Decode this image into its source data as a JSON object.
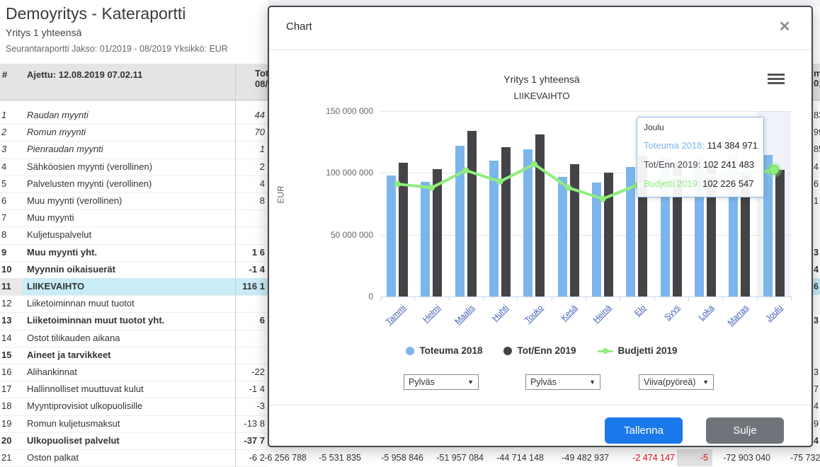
{
  "page_header": {
    "title": "Demoyritys - Kateraportti",
    "subtitle": "Yritys 1 yhteensä",
    "meta": "Seurantaraportti Jakso: 01/2019 - 08/2019 Yksikkö: EUR"
  },
  "table": {
    "hash": "#",
    "run_label": "Ajettu: 12.08.2019 07.02.11",
    "clipped_header_line1": "Tote",
    "clipped_header_line2": "08/",
    "rows": [
      {
        "num": "1",
        "label": "Raudan myynti",
        "value": "44",
        "em": true,
        "bold": false,
        "hl": false
      },
      {
        "num": "2",
        "label": "Romun myynti",
        "value": "70",
        "em": true,
        "bold": false,
        "hl": false
      },
      {
        "num": "3",
        "label": "Pienraudan myynti",
        "value": "1",
        "em": true,
        "bold": false,
        "hl": false
      },
      {
        "num": "4",
        "label": "Sähköosien myynti (verollinen)",
        "value": "2",
        "em": false,
        "bold": false,
        "hl": false
      },
      {
        "num": "5",
        "label": "Palvelusten myynti (verollinen)",
        "value": "4",
        "em": false,
        "bold": false,
        "hl": false
      },
      {
        "num": "6",
        "label": "Muu myynti (verollinen)",
        "value": "8",
        "em": false,
        "bold": false,
        "hl": false
      },
      {
        "num": "7",
        "label": "Muu myynti",
        "value": "",
        "em": false,
        "bold": false,
        "hl": false
      },
      {
        "num": "8",
        "label": "Kuljetuspalvelut",
        "value": "",
        "em": false,
        "bold": false,
        "hl": false
      },
      {
        "num": "9",
        "label": "Muu myynti yht.",
        "value": "1 6",
        "em": false,
        "bold": true,
        "hl": false
      },
      {
        "num": "10",
        "label": "Myynnin oikaisuerät",
        "value": "-1 4",
        "em": false,
        "bold": true,
        "hl": false
      },
      {
        "num": "11",
        "label": "LIIKEVAIHTO",
        "value": "116 1",
        "em": false,
        "bold": true,
        "hl": true
      },
      {
        "num": "12",
        "label": "Liiketoiminnan muut tuotot",
        "value": "",
        "em": false,
        "bold": false,
        "hl": false
      },
      {
        "num": "13",
        "label": "Liiketoiminnan muut tuotot yht.",
        "value": "6",
        "em": false,
        "bold": true,
        "hl": false
      },
      {
        "num": "14",
        "label": "Ostot tilikauden aikana",
        "value": "",
        "em": false,
        "bold": false,
        "hl": false
      },
      {
        "num": "15",
        "label": "Aineet ja tarvikkeet",
        "value": "",
        "em": false,
        "bold": true,
        "hl": false
      },
      {
        "num": "16",
        "label": "Alihankinnat",
        "value": "-22",
        "em": false,
        "bold": false,
        "hl": false
      },
      {
        "num": "17",
        "label": "Hallinnolliset muuttuvat kulut",
        "value": "-1 4",
        "em": false,
        "bold": false,
        "hl": false
      },
      {
        "num": "18",
        "label": "Myyntiprovisiot ulkopuolisille",
        "value": "-3",
        "em": false,
        "bold": false,
        "hl": false
      },
      {
        "num": "19",
        "label": "Romun kuljetusmaksut",
        "value": "-13 8",
        "em": false,
        "bold": false,
        "hl": false
      },
      {
        "num": "20",
        "label": "Ulkopuoliset palvelut",
        "value": "-37 7",
        "em": false,
        "bold": true,
        "hl": false
      },
      {
        "num": "21",
        "label": "Oston palkat",
        "value": "-6 2",
        "em": false,
        "bold": false,
        "hl": false
      }
    ],
    "sliver": {
      "header_line1": "m",
      "header_line2": "01",
      "cells": [
        {
          "row": 1,
          "text": "83"
        },
        {
          "row": 2,
          "text": "99"
        },
        {
          "row": 3,
          "text": "85"
        },
        {
          "row": 4,
          "text": "4"
        },
        {
          "row": 5,
          "text": "6"
        },
        {
          "row": 6,
          "text": "1"
        },
        {
          "row": 9,
          "text": "3",
          "bold": true
        },
        {
          "row": 10,
          "text": "4",
          "bold": true
        },
        {
          "row": 11,
          "text": "6",
          "bold": true,
          "hl": true
        },
        {
          "row": 13,
          "text": "3",
          "bold": true
        },
        {
          "row": 16,
          "text": "3"
        },
        {
          "row": 17,
          "text": "7"
        },
        {
          "row": 18,
          "text": "4"
        },
        {
          "row": 19,
          "text": "9"
        },
        {
          "row": 20,
          "text": "4",
          "bold": true
        }
      ]
    }
  },
  "bottom_row": {
    "cells": [
      {
        "text": "-6 256 788",
        "red": false,
        "gray": false
      },
      {
        "text": "-5 531 835",
        "red": false,
        "gray": false
      },
      {
        "text": "-5 958 846",
        "red": false,
        "gray": false
      },
      {
        "text": "-51 957 084",
        "red": false,
        "gray": false
      },
      {
        "text": "-44 714 148",
        "red": false,
        "gray": false
      },
      {
        "text": "-49 482 937",
        "red": false,
        "gray": false
      },
      {
        "text": "-2 474 147",
        "red": true,
        "gray": false
      },
      {
        "text": "-5",
        "red": true,
        "gray": true
      },
      {
        "text": "-72 903 040",
        "red": false,
        "gray": false
      },
      {
        "text": "-75 732",
        "red": false,
        "gray": false
      }
    ]
  },
  "modal": {
    "title": "Chart",
    "close_icon": "✕",
    "selects": [
      "Pylväs",
      "Pylväs",
      "Viiva(pyöreä)"
    ],
    "select_arrow": "▼",
    "save_label": "Tallenna",
    "close_label": "Sulje"
  },
  "chart_data": {
    "type": "combo",
    "title": "Yritys 1 yhteensä",
    "subtitle": "LIIKEVAIHTO",
    "ylabel": "EUR",
    "ylim": [
      0,
      150000000
    ],
    "grid": true,
    "legend_position": "bottom",
    "yticks": [
      {
        "v": 0,
        "label": "0"
      },
      {
        "v": 50000000,
        "label": "50 000 000"
      },
      {
        "v": 100000000,
        "label": "100 000 000"
      },
      {
        "v": 150000000,
        "label": "150 000 000"
      }
    ],
    "categories": [
      "Tammi",
      "Helmi",
      "Maalis",
      "Huhti",
      "Touko",
      "Kesä",
      "Heinä",
      "Elo",
      "Syys",
      "Loka",
      "Marras",
      "Joulu"
    ],
    "series": [
      {
        "name": "Toteuma 2018",
        "type": "bar",
        "color": "#7cb5ec",
        "values": [
          98000000,
          93000000,
          122000000,
          110000000,
          119000000,
          97000000,
          92000000,
          105000000,
          112000000,
          111000000,
          114000000,
          114384971
        ]
      },
      {
        "name": "Tot/Enn 2019",
        "type": "bar",
        "color": "#434348",
        "values": [
          108000000,
          103000000,
          134000000,
          121000000,
          131000000,
          107000000,
          100000000,
          114000000,
          108000000,
          106000000,
          101000000,
          102241483
        ]
      },
      {
        "name": "Budjetti 2019",
        "type": "line",
        "color": "#90ed7d",
        "values": [
          91000000,
          88000000,
          102000000,
          93000000,
          107000000,
          88000000,
          79000000,
          90000000,
          96000000,
          98000000,
          98000000,
          102226547
        ]
      }
    ],
    "hover_category": "Joulu",
    "tooltip": {
      "title": "Joulu",
      "rows": [
        {
          "label": "Toteuma 2018:",
          "value": "114 384 971",
          "color": "#7cb5ec"
        },
        {
          "label": "Tot/Enn 2019:",
          "value": "102 241 483",
          "color": "#434348"
        },
        {
          "label": "Budjetti 2019:",
          "value": "102 226 547",
          "color": "#90ed7d"
        }
      ]
    }
  }
}
